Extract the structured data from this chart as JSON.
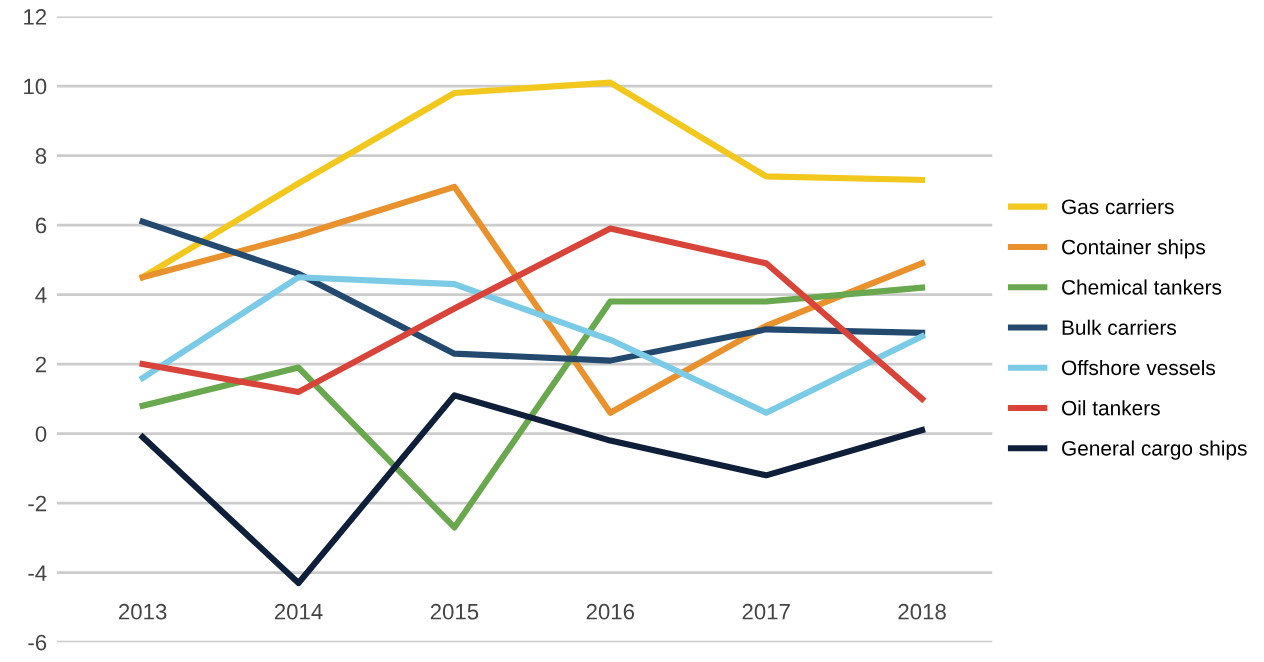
{
  "chart_data": {
    "type": "line",
    "categories": [
      "2013",
      "2014",
      "2015",
      "2016",
      "2017",
      "2018"
    ],
    "series": [
      {
        "name": "Gas carriers",
        "color": "#f2c81e",
        "values": [
          4.5,
          7.2,
          9.8,
          10.1,
          7.4,
          7.3
        ]
      },
      {
        "name": "Container ships",
        "color": "#e8912d",
        "values": [
          4.5,
          5.7,
          7.1,
          0.6,
          3.1,
          4.9
        ]
      },
      {
        "name": "Chemical tankers",
        "color": "#6aa84f",
        "values": [
          0.8,
          1.9,
          -2.7,
          3.8,
          3.8,
          4.2
        ]
      },
      {
        "name": "Bulk carriers",
        "color": "#234a6e",
        "values": [
          6.1,
          4.6,
          2.3,
          2.1,
          3.0,
          2.9
        ]
      },
      {
        "name": "Offshore vessels",
        "color": "#7ccbe6",
        "values": [
          1.6,
          4.5,
          4.3,
          2.7,
          0.6,
          2.8
        ]
      },
      {
        "name": "Oil tankers",
        "color": "#d9443a",
        "values": [
          2.0,
          1.2,
          3.6,
          5.9,
          4.9,
          1.0
        ]
      },
      {
        "name": "General cargo ships",
        "color": "#0f1f3a",
        "values": [
          -0.1,
          -4.3,
          1.1,
          -0.2,
          -1.2,
          0.1
        ]
      }
    ],
    "ylim": [
      -6,
      12
    ],
    "yticks": [
      -6,
      -4,
      -2,
      0,
      2,
      4,
      6,
      8,
      10,
      12
    ],
    "grid": "y",
    "legend": "right",
    "marker": "none",
    "line_style": "solid"
  }
}
